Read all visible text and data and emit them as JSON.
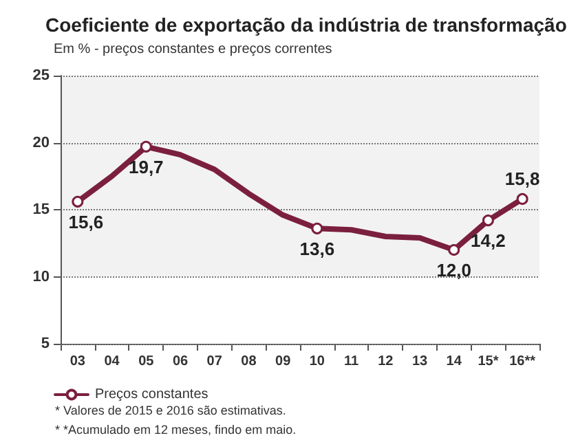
{
  "chart_data": {
    "type": "line",
    "title": "Coeficiente de exportação da indústria de transformação",
    "subtitle": "Em % - preços constantes e preços correntes",
    "categories": [
      "03",
      "04",
      "05",
      "06",
      "07",
      "08",
      "09",
      "10",
      "11",
      "12",
      "13",
      "14",
      "15*",
      "16**"
    ],
    "series": [
      {
        "name": "Preços constantes",
        "color": "#7b1f3e",
        "values": [
          15.6,
          17.5,
          19.7,
          19.1,
          18.0,
          16.2,
          14.6,
          13.6,
          13.5,
          13.0,
          12.9,
          12.0,
          14.2,
          15.8
        ],
        "value_labels": [
          "15,6",
          null,
          "19,7",
          null,
          null,
          null,
          null,
          "13,6",
          null,
          null,
          null,
          "12,0",
          "14,2",
          "15,8"
        ]
      }
    ],
    "ylim": [
      5,
      25
    ],
    "yticks": [
      5,
      10,
      15,
      20,
      25
    ],
    "grid": "y",
    "legend": "bottom left",
    "line_style": "solid",
    "bands": [
      {
        "axis": "y",
        "from": 10,
        "to": 25,
        "color": "#f2f2f2"
      }
    ],
    "annotations": [
      "* Valores de 2015 e 2016 são estimativas.",
      "* *Acumulado em 12 meses, findo em maio."
    ]
  }
}
